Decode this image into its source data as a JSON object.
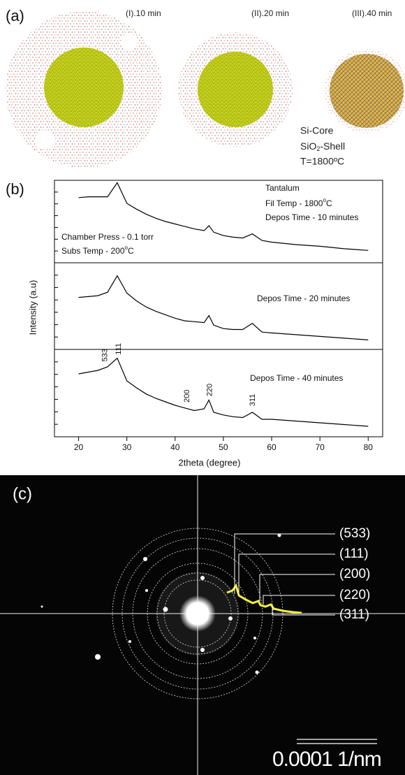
{
  "panel_a": {
    "label": "(a)",
    "captions": [
      "(I).10 min",
      "(II).20 min",
      "(III).40 min"
    ],
    "legend": {
      "core": "Si-Core",
      "shell": [
        "SiO",
        "2",
        "-Shell"
      ],
      "temperature": "T=1800ºC"
    }
  },
  "chart_data": {
    "type": "line",
    "label": "(b)",
    "xlabel": "2theta (degree)",
    "ylabel": "Intensity (a.u)",
    "x": [
      20,
      22,
      24,
      26,
      28,
      30,
      32,
      34,
      36,
      38,
      40,
      42,
      44,
      46,
      47,
      48,
      50,
      52,
      54,
      56,
      58,
      60,
      65,
      70,
      75,
      80
    ],
    "xlim": [
      15,
      83
    ],
    "xticks": [
      20,
      30,
      40,
      50,
      60,
      70,
      80
    ],
    "ylim": [
      0,
      100
    ],
    "series": [
      {
        "color": "#000000",
        "values": [
          79,
          80,
          80,
          80,
          97,
          72,
          65,
          59,
          54,
          50,
          47,
          44,
          41,
          39,
          45,
          37,
          33,
          31,
          30,
          35,
          27,
          25,
          22,
          20,
          17,
          15
        ],
        "annotations": [
          "Tantalum",
          [
            "Fil Temp - 1800",
            "o",
            "C"
          ],
          "Depos Time - 10 minutes",
          "Chamber Press - 0.1 torr",
          [
            "Subs Temp - 200",
            "o",
            "C"
          ]
        ]
      },
      {
        "color": "#000000",
        "values": [
          60,
          61,
          62,
          66,
          85,
          65,
          56,
          49,
          44,
          40,
          36,
          33,
          32,
          31,
          39,
          28,
          24,
          23,
          23,
          30,
          20,
          19,
          17,
          15,
          13,
          11
        ],
        "annotations": [
          "Depos Time - 20 minutes"
        ]
      },
      {
        "color": "#000000",
        "values": [
          72,
          74,
          76,
          80,
          90,
          64,
          56,
          49,
          44,
          40,
          36,
          33,
          30,
          32,
          42,
          28,
          25,
          23,
          22,
          28,
          20,
          20,
          18,
          16,
          14,
          12
        ],
        "annotations": [
          "Depos Time - 40 minutes"
        ],
        "peak_labels": [
          {
            "label": "533",
            "x": 25.5
          },
          {
            "label": "111",
            "x": 28.3
          },
          {
            "label": "200",
            "x": 42.5
          },
          {
            "label": "220",
            "x": 47.2
          },
          {
            "label": "311",
            "x": 56.1
          }
        ]
      }
    ]
  },
  "panel_c": {
    "label": "(c)",
    "rings": [
      "(533)",
      "(111)",
      "(200)",
      "(220)",
      "(311)"
    ],
    "scale_bar": "0.0001 1/nm"
  }
}
